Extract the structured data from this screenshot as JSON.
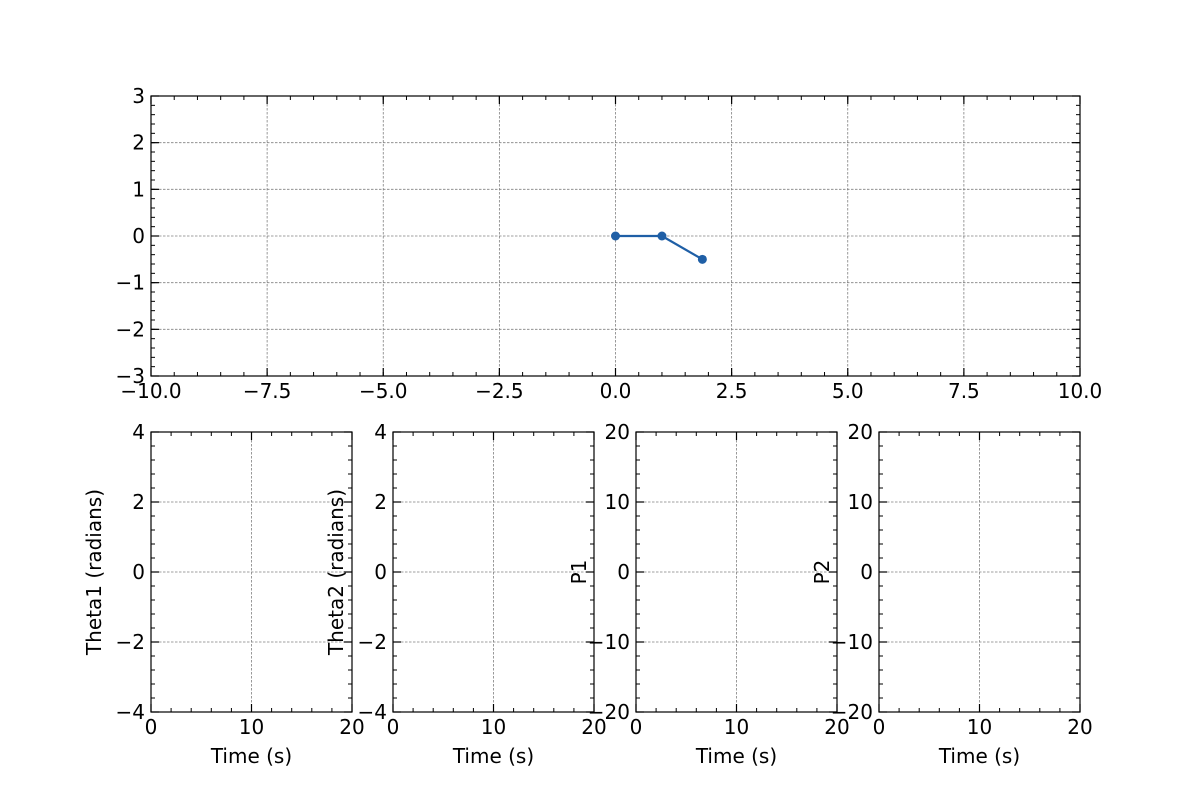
{
  "colors": {
    "series": "#1f5fa6",
    "grid": "#808080",
    "axes": "#000000",
    "background": "#ffffff"
  },
  "chart_data": [
    {
      "id": "pendulum",
      "type": "line",
      "title": "",
      "xlabel": "",
      "ylabel": "",
      "xlim": [
        -10,
        10
      ],
      "ylim": [
        -3,
        3
      ],
      "xticks": [
        -10,
        -7.5,
        -5,
        -2.5,
        0,
        2.5,
        5,
        7.5,
        10
      ],
      "xtick_labels": [
        "−10.0",
        "−7.5",
        "−5.0",
        "−2.5",
        "0.0",
        "2.5",
        "5.0",
        "7.5",
        "10.0"
      ],
      "yticks": [
        -3,
        -2,
        -1,
        0,
        1,
        2,
        3
      ],
      "ytick_labels": [
        "−3",
        "−2",
        "−1",
        "0",
        "1",
        "2",
        "3"
      ],
      "grid": true,
      "series": [
        {
          "x": [
            0,
            1,
            1.87
          ],
          "y": [
            0,
            0,
            -0.5
          ],
          "marker": "circle"
        }
      ]
    },
    {
      "id": "theta1",
      "type": "line",
      "xlabel": "Time (s)",
      "ylabel": "Theta1 (radians)",
      "xlim": [
        0,
        20
      ],
      "ylim": [
        -4,
        4
      ],
      "xticks": [
        0,
        10,
        20
      ],
      "xtick_labels": [
        "0",
        "10",
        "20"
      ],
      "yticks": [
        -4,
        -2,
        0,
        2,
        4
      ],
      "ytick_labels": [
        "−4",
        "−2",
        "0",
        "2",
        "4"
      ],
      "grid": true,
      "series": []
    },
    {
      "id": "theta2",
      "type": "line",
      "xlabel": "Time (s)",
      "ylabel": "Theta2 (radians)",
      "xlim": [
        0,
        20
      ],
      "ylim": [
        -4,
        4
      ],
      "xticks": [
        0,
        10,
        20
      ],
      "xtick_labels": [
        "0",
        "10",
        "20"
      ],
      "yticks": [
        -4,
        -2,
        0,
        2,
        4
      ],
      "ytick_labels": [
        "−4",
        "−2",
        "0",
        "2",
        "4"
      ],
      "grid": true,
      "series": []
    },
    {
      "id": "p1",
      "type": "line",
      "xlabel": "Time (s)",
      "ylabel": "P1",
      "xlim": [
        0,
        20
      ],
      "ylim": [
        -20,
        20
      ],
      "xticks": [
        0,
        10,
        20
      ],
      "xtick_labels": [
        "0",
        "10",
        "20"
      ],
      "yticks": [
        -20,
        -10,
        0,
        10,
        20
      ],
      "ytick_labels": [
        "−20",
        "−10",
        "0",
        "10",
        "20"
      ],
      "grid": true,
      "series": []
    },
    {
      "id": "p2",
      "type": "line",
      "xlabel": "Time (s)",
      "ylabel": "P2",
      "xlim": [
        0,
        20
      ],
      "ylim": [
        -20,
        20
      ],
      "xticks": [
        0,
        10,
        20
      ],
      "xtick_labels": [
        "0",
        "10",
        "20"
      ],
      "yticks": [
        -20,
        -10,
        0,
        10,
        20
      ],
      "ytick_labels": [
        "−20",
        "−10",
        "0",
        "10",
        "20"
      ],
      "grid": true,
      "series": []
    }
  ]
}
